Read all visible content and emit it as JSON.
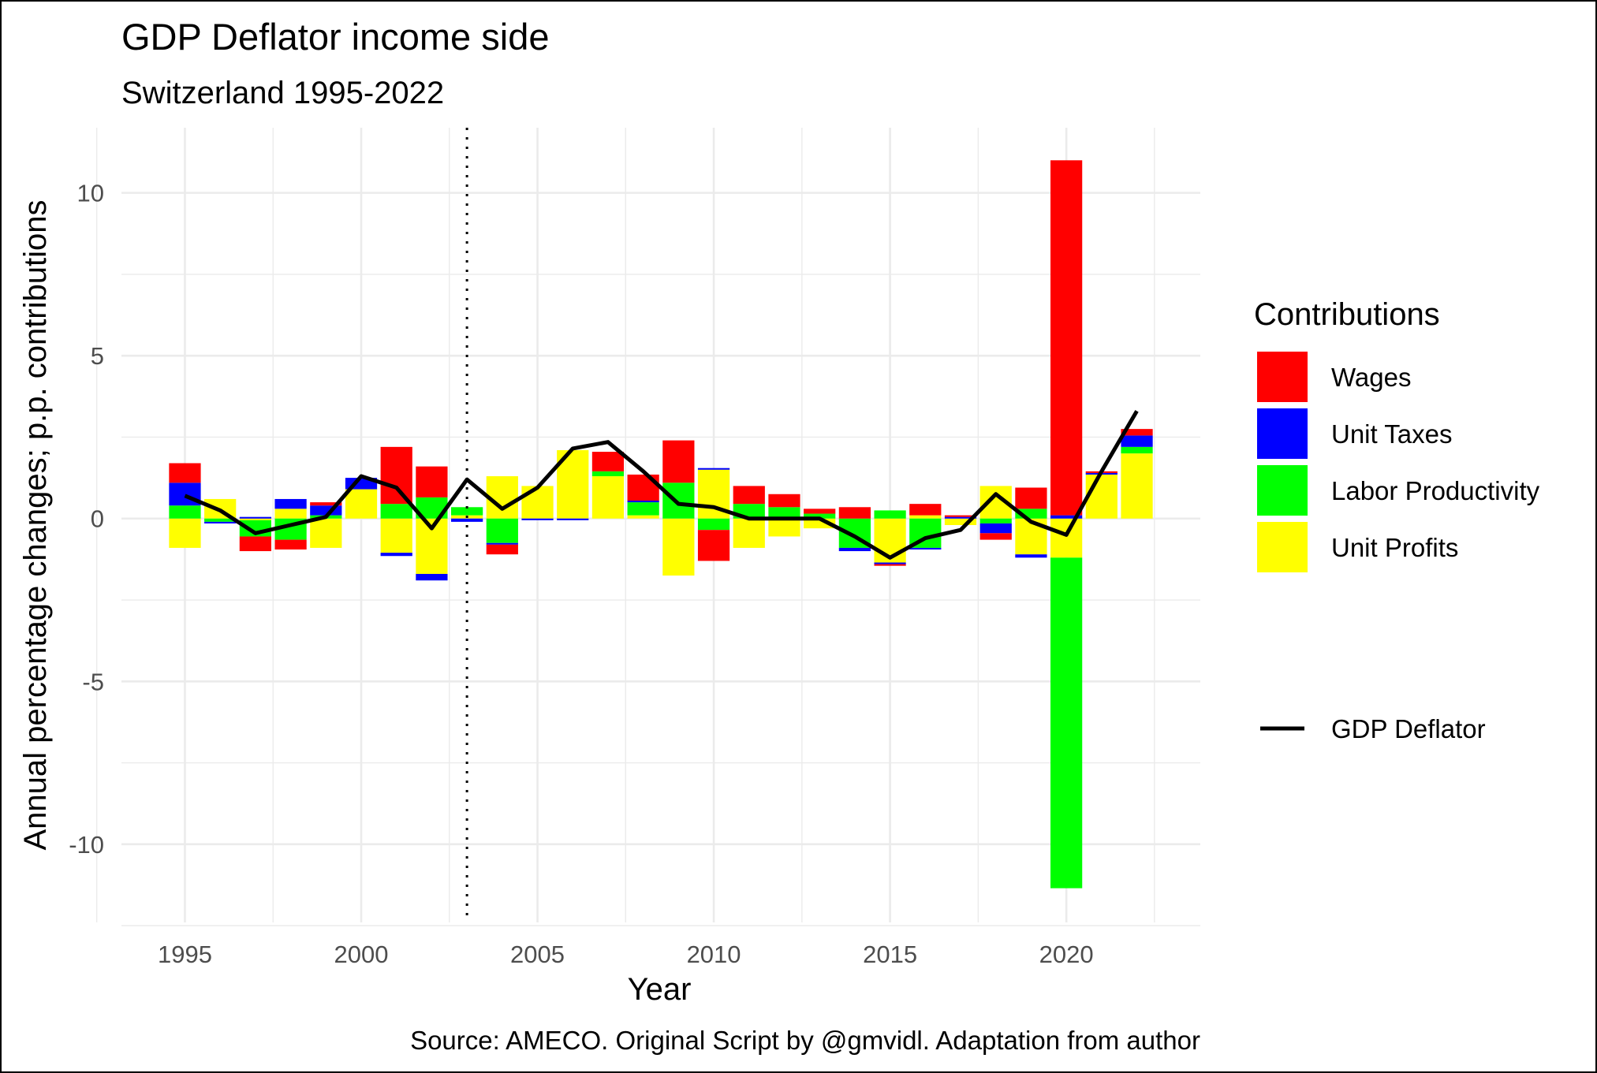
{
  "chart_data": {
    "type": "bar",
    "title": "GDP Deflator income side",
    "subtitle": "Switzerland 1995-2022",
    "xlabel": "Year",
    "ylabel": "Annual percentage changes; p.p. contributions",
    "caption": "Source: AMECO. Original Script by @gmvidl. Adaptation from author",
    "xlim": [
      1993.2,
      2023.8
    ],
    "ylim": [
      -12.4,
      12.0
    ],
    "x_ticks": [
      1995,
      2000,
      2005,
      2010,
      2015,
      2020
    ],
    "y_ticks": [
      10,
      5,
      0,
      -5,
      -10
    ],
    "grid": true,
    "vline_x": 2003,
    "legend_title": "Contributions",
    "legend_position": "right",
    "x": [
      1995,
      1996,
      1997,
      1998,
      1999,
      2000,
      2001,
      2002,
      2003,
      2004,
      2005,
      2006,
      2007,
      2008,
      2009,
      2010,
      2011,
      2012,
      2013,
      2014,
      2015,
      2016,
      2017,
      2018,
      2019,
      2020,
      2021,
      2022
    ],
    "series": [
      {
        "name": "Unit Profits",
        "color": "#ffff00",
        "values": [
          -0.9,
          0.6,
          -0.05,
          0.3,
          -0.9,
          0.9,
          -1.05,
          -1.7,
          0.1,
          1.3,
          1.0,
          2.1,
          1.3,
          0.1,
          -1.75,
          1.5,
          -0.9,
          -0.55,
          -0.3,
          0.0,
          -1.35,
          0.1,
          -0.2,
          1.0,
          -1.1,
          -1.2,
          1.35,
          2.0
        ]
      },
      {
        "name": "Labor Productivity",
        "color": "#00ff00",
        "values": [
          0.4,
          -0.1,
          -0.5,
          -0.65,
          0.1,
          0.0,
          0.45,
          0.65,
          0.25,
          -0.75,
          0.0,
          0.0,
          0.15,
          0.4,
          1.1,
          -0.35,
          0.45,
          0.35,
          0.15,
          -0.9,
          0.25,
          -0.9,
          0.0,
          -0.15,
          0.3,
          -10.15,
          0.0,
          0.2
        ]
      },
      {
        "name": "Unit Taxes",
        "color": "#0000ff",
        "values": [
          0.7,
          -0.05,
          0.05,
          0.3,
          0.3,
          0.35,
          -0.1,
          -0.2,
          -0.1,
          -0.05,
          -0.05,
          -0.05,
          0.0,
          0.05,
          0.0,
          0.05,
          0.0,
          0.0,
          0.0,
          -0.1,
          -0.05,
          -0.05,
          0.05,
          -0.3,
          -0.1,
          0.1,
          0.05,
          0.35
        ]
      },
      {
        "name": "Wages",
        "color": "#ff0000",
        "values": [
          0.6,
          0.0,
          -0.45,
          -0.3,
          0.1,
          0.0,
          1.75,
          0.95,
          0.0,
          -0.3,
          0.0,
          0.0,
          0.6,
          0.8,
          1.3,
          -0.95,
          0.55,
          0.4,
          0.15,
          0.35,
          -0.05,
          0.35,
          0.05,
          -0.2,
          0.65,
          10.9,
          0.05,
          0.2
        ]
      }
    ],
    "line": {
      "name": "GDP Deflator",
      "color": "#000000",
      "values": [
        0.7,
        0.25,
        -0.45,
        -0.2,
        0.05,
        1.3,
        0.95,
        -0.3,
        1.2,
        0.3,
        0.95,
        2.15,
        2.35,
        1.45,
        0.45,
        0.35,
        0.0,
        0.0,
        0.0,
        -0.55,
        -1.2,
        -0.6,
        -0.35,
        0.75,
        -0.1,
        -0.5,
        1.45,
        3.3
      ]
    }
  }
}
